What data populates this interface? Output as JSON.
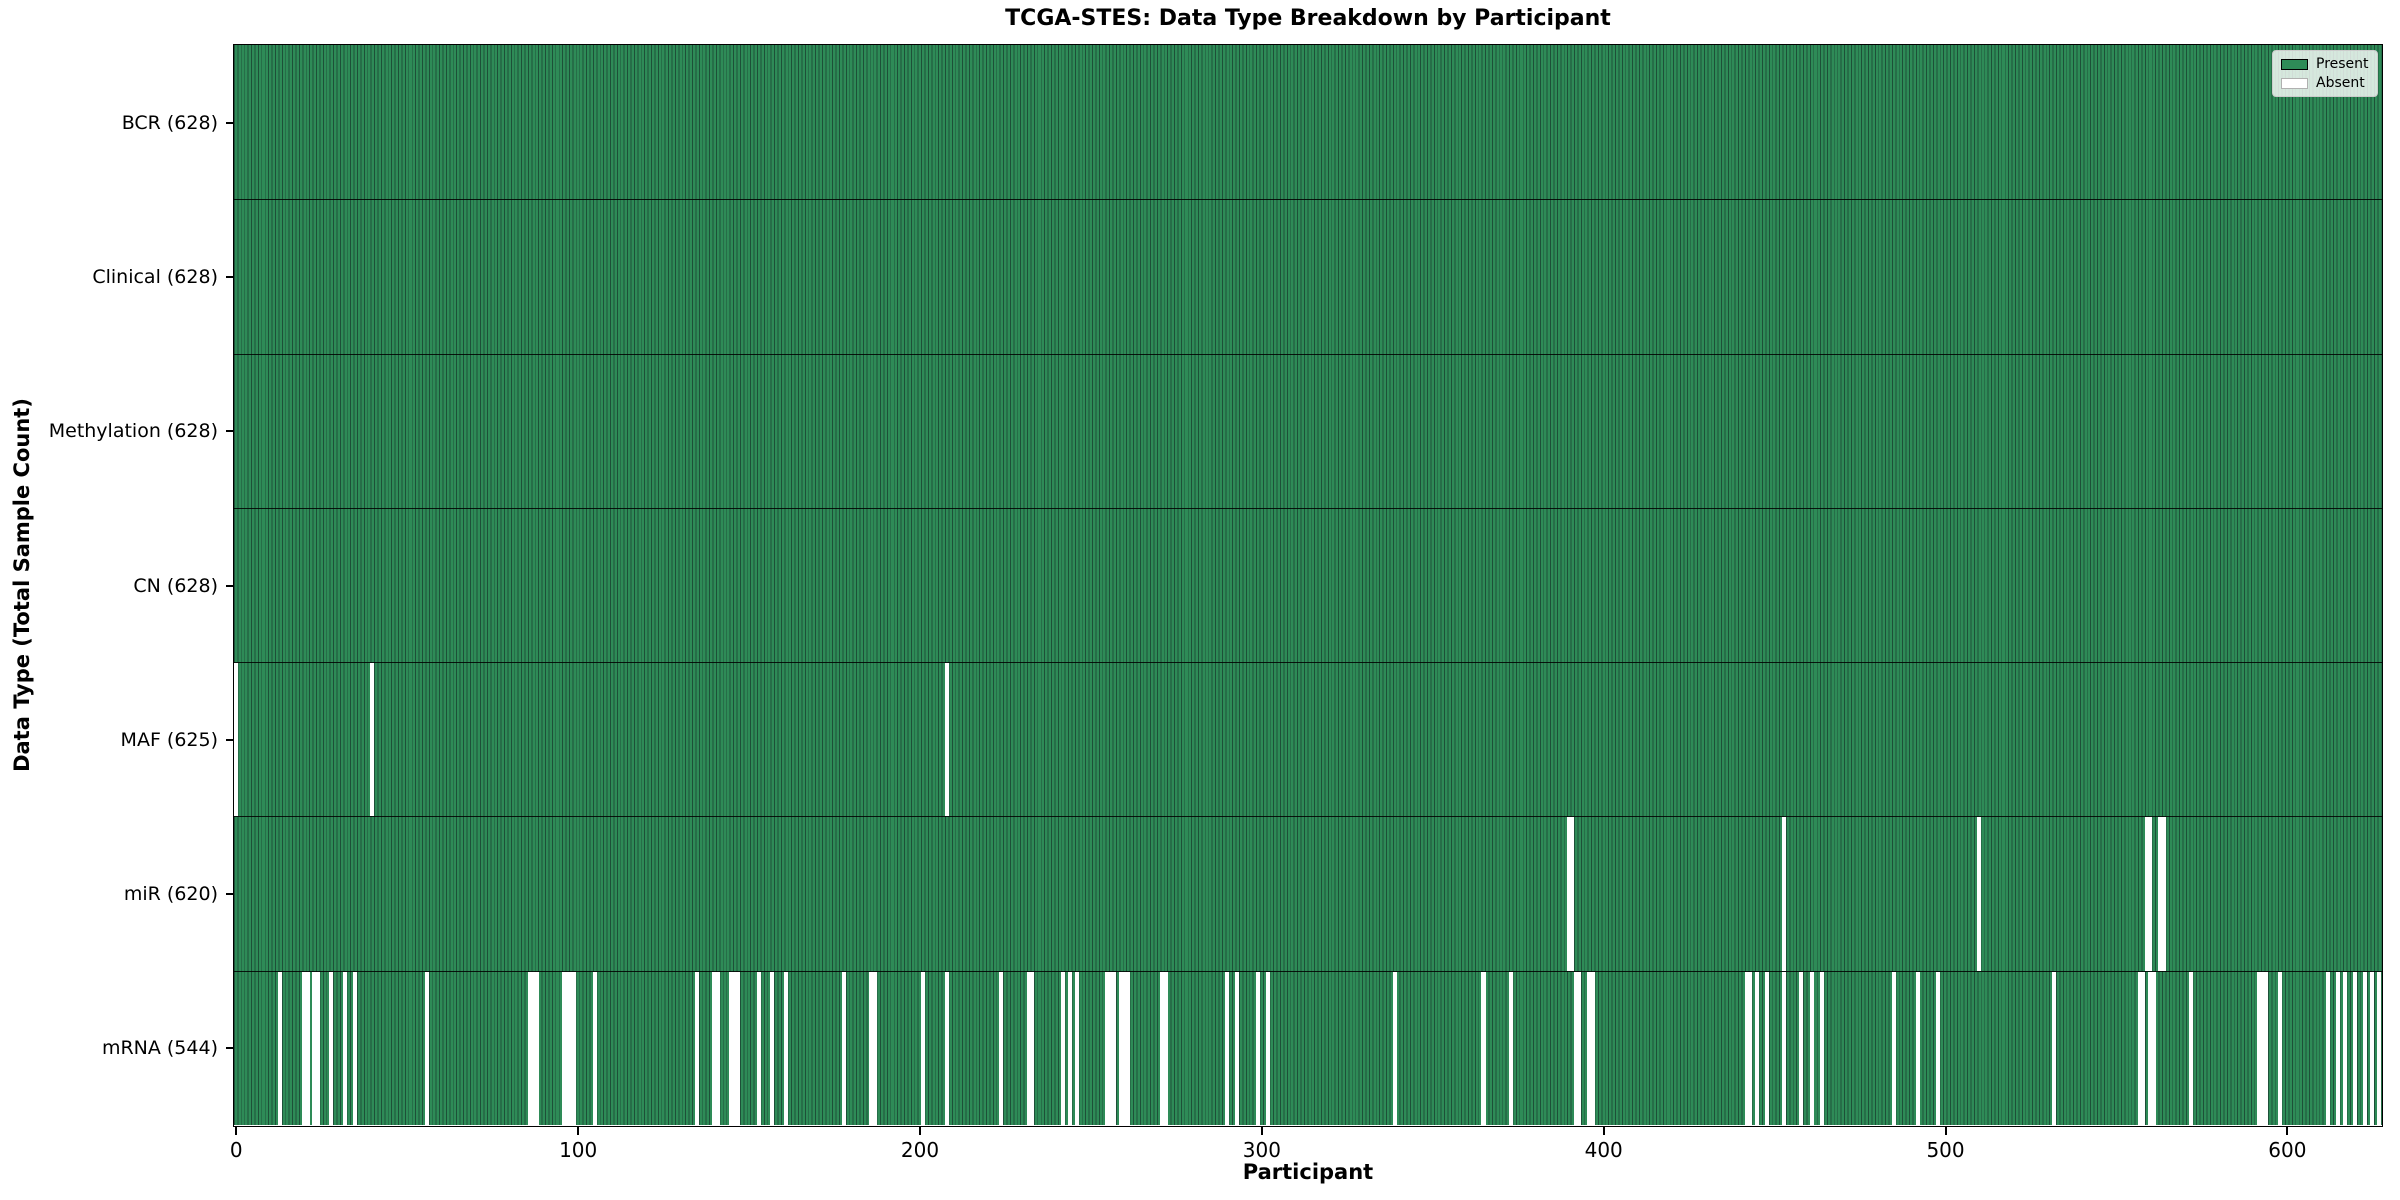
{
  "chart_data": {
    "type": "heatmap",
    "title": "TCGA-STES: Data Type Breakdown by Participant",
    "xlabel": "Participant",
    "ylabel": "Data Type (Total Sample Count)",
    "legend": {
      "present_label": "Present",
      "absent_label": "Absent"
    },
    "legend_position": "upper right",
    "colors": {
      "present": "#2e8b57",
      "bar_edge": "#1d5038",
      "absent": "#ffffff",
      "row_separator": "#000000"
    },
    "n_participants": 628,
    "xlim": [
      -0.5,
      627.5
    ],
    "x_ticks": [
      0,
      100,
      200,
      300,
      400,
      500,
      600
    ],
    "rows": [
      {
        "label": "BCR (628)",
        "data_type": "BCR",
        "present_count": 628,
        "absent_participants": []
      },
      {
        "label": "Clinical (628)",
        "data_type": "Clinical",
        "present_count": 628,
        "absent_participants": []
      },
      {
        "label": "Methylation (628)",
        "data_type": "Methylation",
        "present_count": 628,
        "absent_participants": []
      },
      {
        "label": "CN (628)",
        "data_type": "CN",
        "present_count": 628,
        "absent_participants": []
      },
      {
        "label": "MAF (625)",
        "data_type": "MAF",
        "present_count": 625,
        "absent_participants": [
          0,
          40,
          208
        ]
      },
      {
        "label": "miR (620)",
        "data_type": "miR",
        "present_count": 620,
        "absent_participants": [
          390,
          391,
          453,
          510,
          559,
          560,
          563,
          564
        ]
      },
      {
        "label": "mRNA (544)",
        "data_type": "mRNA",
        "present_count": 544,
        "absent_participants": [
          13,
          20,
          21,
          23,
          24,
          28,
          32,
          35,
          56,
          86,
          87,
          88,
          96,
          97,
          98,
          99,
          105,
          135,
          140,
          141,
          145,
          146,
          147,
          153,
          157,
          161,
          178,
          186,
          187,
          201,
          208,
          224,
          232,
          233,
          242,
          244,
          246,
          255,
          256,
          257,
          259,
          260,
          261,
          271,
          272,
          290,
          293,
          299,
          302,
          339,
          365,
          373,
          392,
          393,
          396,
          397,
          442,
          443,
          445,
          448,
          453,
          458,
          461,
          464,
          485,
          492,
          498,
          532,
          557,
          558,
          560,
          561,
          572,
          592,
          593,
          594,
          598,
          612,
          615,
          617,
          620,
          623,
          625,
          627
        ]
      }
    ]
  }
}
